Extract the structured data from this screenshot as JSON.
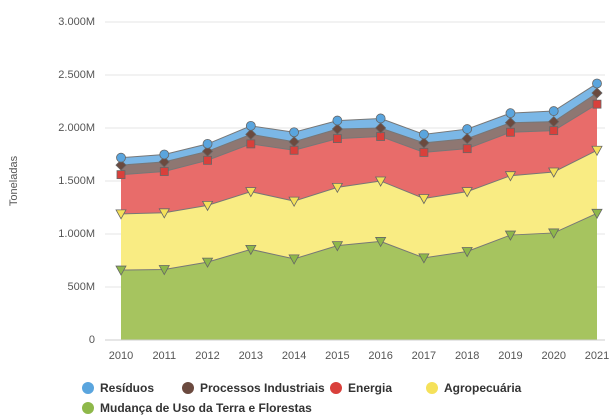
{
  "chart_data": {
    "type": "stacked_area",
    "y_label": "Toneladas",
    "categories": [
      "2010",
      "2011",
      "2012",
      "2013",
      "2014",
      "2015",
      "2016",
      "2017",
      "2018",
      "2019",
      "2020",
      "2021"
    ],
    "series": [
      {
        "name": "Resíduos",
        "color": "#7bb7e6",
        "marker_color": "#5aa5de",
        "marker": "circle",
        "values": [
          70,
          70,
          70,
          80,
          90,
          80,
          90,
          80,
          90,
          90,
          100,
          90
        ]
      },
      {
        "name": "Processos Industriais",
        "color": "#8e7772",
        "marker_color": "#6b4a3f",
        "marker": "diamond",
        "values": [
          90,
          90,
          85,
          90,
          80,
          90,
          80,
          90,
          95,
          90,
          85,
          105
        ]
      },
      {
        "name": "Energia",
        "color": "#e86c6a",
        "marker_color": "#d9403b",
        "marker": "square",
        "values": [
          370,
          390,
          425,
          450,
          480,
          460,
          420,
          435,
          405,
          410,
          390,
          435
        ]
      },
      {
        "name": "Agropecuária",
        "color": "#f9ec83",
        "marker_color": "#f5e15a",
        "marker": "triangle-down",
        "values": [
          530,
          535,
          535,
          545,
          545,
          550,
          570,
          560,
          565,
          560,
          575,
          595
        ]
      },
      {
        "name": "Mudança de Uso da Terra e Florestas",
        "color": "#a6c45f",
        "marker_color": "#8eb84a",
        "marker": "triangle-down",
        "values": [
          660,
          665,
          735,
          855,
          765,
          890,
          930,
          775,
          835,
          990,
          1010,
          1195
        ]
      }
    ],
    "ylim": [
      0,
      3000
    ],
    "yticks": [
      0,
      {
        "value": 500,
        "label": "500M"
      },
      {
        "value": 1000,
        "label": "1.000M"
      },
      {
        "value": 1500,
        "label": "1.500M"
      },
      {
        "value": 2000,
        "label": "2.000M"
      },
      {
        "value": 2500,
        "label": "2.500M"
      },
      {
        "value": 3000,
        "label": "3.000M"
      }
    ],
    "grid": true
  }
}
